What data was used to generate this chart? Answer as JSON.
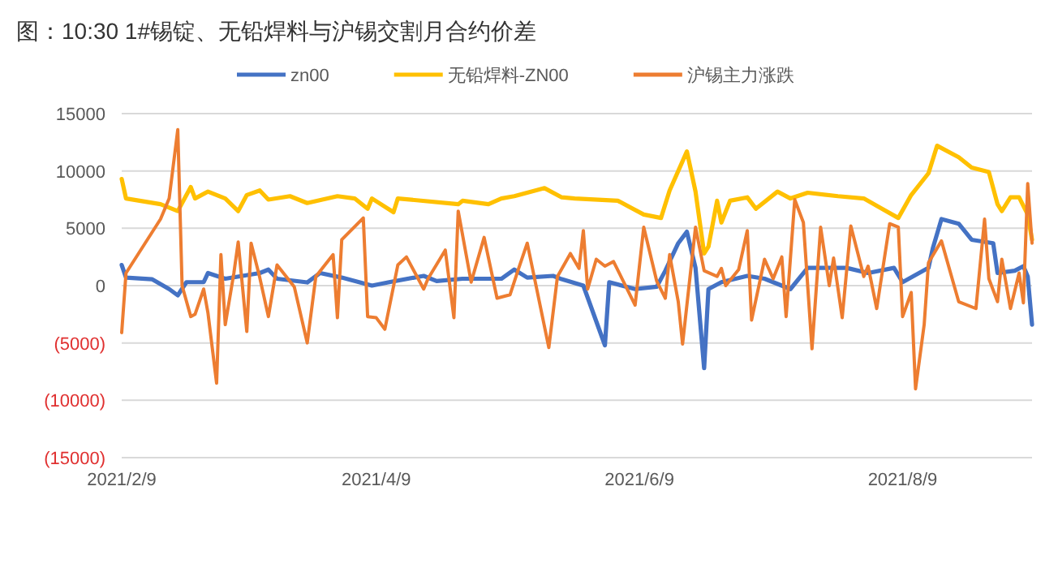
{
  "chart_data": {
    "type": "line",
    "title": "图：10:30 1#锡锭、无铅焊料与沪锡交割月合约价差",
    "legend": "top",
    "grid": "y",
    "marker": "none",
    "line_style": "solid",
    "xlim": [
      "2021-02-09",
      "2021-09-08"
    ],
    "xticks": [
      {
        "value": "2021-02-09",
        "label": "2021/2/9"
      },
      {
        "value": "2021-04-09",
        "label": "2021/4/9"
      },
      {
        "value": "2021-06-09",
        "label": "2021/6/9"
      },
      {
        "value": "2021-08-09",
        "label": "2021/8/9"
      }
    ],
    "ylim": [
      -15000,
      15000
    ],
    "yticks": [
      {
        "value": -15000,
        "label": "(15000)"
      },
      {
        "value": -10000,
        "label": "(10000)"
      },
      {
        "value": -5000,
        "label": "(5000)"
      },
      0,
      5000,
      10000,
      15000
    ],
    "series": [
      {
        "name": "zn00",
        "color": "#4472c4",
        "x": [
          "2021-02-09",
          "2021-02-10",
          "2021-02-16",
          "2021-02-20",
          "2021-02-22",
          "2021-02-24",
          "2021-02-28",
          "2021-03-01",
          "2021-03-05",
          "2021-03-09",
          "2021-03-13",
          "2021-03-15",
          "2021-03-17",
          "2021-03-24",
          "2021-03-27",
          "2021-04-01",
          "2021-04-08",
          "2021-04-12",
          "2021-04-20",
          "2021-04-23",
          "2021-04-29",
          "2021-05-08",
          "2021-05-11",
          "2021-05-14",
          "2021-05-20",
          "2021-05-22",
          "2021-05-27",
          "2021-06-01",
          "2021-06-02",
          "2021-06-08",
          "2021-06-13",
          "2021-06-15",
          "2021-06-18",
          "2021-06-20",
          "2021-06-22",
          "2021-06-24",
          "2021-06-25",
          "2021-06-28",
          "2021-07-04",
          "2021-07-08",
          "2021-07-14",
          "2021-07-18",
          "2021-07-21",
          "2021-07-27",
          "2021-08-01",
          "2021-08-07",
          "2021-08-09",
          "2021-08-15",
          "2021-08-16",
          "2021-08-18",
          "2021-08-22",
          "2021-08-25",
          "2021-08-30",
          "2021-08-31",
          "2021-09-04",
          "2021-09-06",
          "2021-09-07",
          "2021-09-08"
        ],
        "values": [
          1800,
          700,
          560,
          -300,
          -850,
          300,
          300,
          1100,
          600,
          850,
          1100,
          1400,
          600,
          280,
          1100,
          700,
          0,
          300,
          850,
          400,
          600,
          600,
          1400,
          700,
          850,
          560,
          0,
          -5200,
          300,
          -300,
          -100,
          1300,
          3700,
          4700,
          1550,
          -7200,
          -300,
          300,
          850,
          600,
          -300,
          1550,
          1550,
          1550,
          1100,
          1550,
          300,
          1550,
          3250,
          5800,
          5400,
          4000,
          3700,
          1100,
          1300,
          1700,
          800,
          -3400
        ]
      },
      {
        "name": "无铅焊料-ZN00",
        "color": "#ffc000",
        "x": [
          "2021-02-09",
          "2021-02-10",
          "2021-02-18",
          "2021-02-22",
          "2021-02-25",
          "2021-02-26",
          "2021-03-01",
          "2021-03-05",
          "2021-03-08",
          "2021-03-10",
          "2021-03-13",
          "2021-03-15",
          "2021-03-20",
          "2021-03-24",
          "2021-03-31",
          "2021-04-04",
          "2021-04-07",
          "2021-04-08",
          "2021-04-13",
          "2021-04-14",
          "2021-04-28",
          "2021-04-29",
          "2021-05-05",
          "2021-05-08",
          "2021-05-11",
          "2021-05-18",
          "2021-05-22",
          "2021-05-25",
          "2021-06-04",
          "2021-06-10",
          "2021-06-14",
          "2021-06-16",
          "2021-06-20",
          "2021-06-22",
          "2021-06-24",
          "2021-06-25",
          "2021-06-27",
          "2021-06-28",
          "2021-06-30",
          "2021-07-04",
          "2021-07-06",
          "2021-07-11",
          "2021-07-14",
          "2021-07-18",
          "2021-07-25",
          "2021-07-31",
          "2021-08-08",
          "2021-08-11",
          "2021-08-15",
          "2021-08-17",
          "2021-08-22",
          "2021-08-25",
          "2021-08-29",
          "2021-08-31",
          "2021-09-01",
          "2021-09-03",
          "2021-09-05",
          "2021-09-07",
          "2021-09-08"
        ],
        "values": [
          9300,
          7600,
          7100,
          6500,
          8600,
          7600,
          8200,
          7600,
          6500,
          7900,
          8300,
          7500,
          7800,
          7200,
          7800,
          7600,
          6700,
          7600,
          6400,
          7600,
          7100,
          7400,
          7100,
          7600,
          7800,
          8500,
          7700,
          7600,
          7400,
          6200,
          5900,
          8300,
          11700,
          8200,
          2800,
          3400,
          7400,
          5500,
          7400,
          7700,
          6700,
          8200,
          7600,
          8100,
          7800,
          7600,
          5900,
          7900,
          9800,
          12200,
          11200,
          10300,
          9900,
          7100,
          6500,
          7700,
          7700,
          6200,
          4000
        ]
      },
      {
        "name": "沪锡主力涨跌",
        "color": "#ed7d31",
        "x": [
          "2021-02-09",
          "2021-02-10",
          "2021-02-18",
          "2021-02-20",
          "2021-02-22",
          "2021-02-23",
          "2021-02-25",
          "2021-02-26",
          "2021-02-28",
          "2021-03-01",
          "2021-03-03",
          "2021-03-04",
          "2021-03-05",
          "2021-03-07",
          "2021-03-08",
          "2021-03-10",
          "2021-03-11",
          "2021-03-13",
          "2021-03-15",
          "2021-03-17",
          "2021-03-21",
          "2021-03-24",
          "2021-03-26",
          "2021-03-30",
          "2021-03-31",
          "2021-04-01",
          "2021-04-06",
          "2021-04-07",
          "2021-04-09",
          "2021-04-11",
          "2021-04-14",
          "2021-04-16",
          "2021-04-20",
          "2021-04-21",
          "2021-04-25",
          "2021-04-27",
          "2021-04-28",
          "2021-05-01",
          "2021-05-04",
          "2021-05-07",
          "2021-05-10",
          "2021-05-12",
          "2021-05-14",
          "2021-05-19",
          "2021-05-21",
          "2021-05-24",
          "2021-05-26",
          "2021-05-27",
          "2021-05-28",
          "2021-05-30",
          "2021-06-01",
          "2021-06-03",
          "2021-06-08",
          "2021-06-10",
          "2021-06-13",
          "2021-06-15",
          "2021-06-16",
          "2021-06-18",
          "2021-06-19",
          "2021-06-22",
          "2021-06-24",
          "2021-06-27",
          "2021-06-28",
          "2021-06-29",
          "2021-07-02",
          "2021-07-04",
          "2021-07-05",
          "2021-07-08",
          "2021-07-10",
          "2021-07-12",
          "2021-07-13",
          "2021-07-15",
          "2021-07-17",
          "2021-07-19",
          "2021-07-21",
          "2021-07-23",
          "2021-07-24",
          "2021-07-26",
          "2021-07-28",
          "2021-07-31",
          "2021-08-01",
          "2021-08-03",
          "2021-08-06",
          "2021-08-08",
          "2021-08-09",
          "2021-08-11",
          "2021-08-12",
          "2021-08-14",
          "2021-08-15",
          "2021-08-18",
          "2021-08-22",
          "2021-08-26",
          "2021-08-28",
          "2021-08-29",
          "2021-08-31",
          "2021-09-01",
          "2021-09-03",
          "2021-09-05",
          "2021-09-06",
          "2021-09-07",
          "2021-09-08"
        ],
        "values": [
          -4100,
          1100,
          5800,
          7600,
          13600,
          0,
          -2700,
          -2500,
          -300,
          -2400,
          -8500,
          2700,
          -3400,
          1100,
          3800,
          -4000,
          3700,
          700,
          -2700,
          1800,
          -100,
          -5000,
          800,
          2700,
          -2800,
          4000,
          5900,
          -2700,
          -2800,
          -3800,
          1800,
          2500,
          -300,
          600,
          3100,
          -2800,
          6500,
          300,
          4200,
          -1100,
          -800,
          1500,
          3700,
          -5400,
          800,
          2800,
          1500,
          4800,
          -300,
          2300,
          1700,
          2100,
          -1700,
          5100,
          400,
          -1100,
          2700,
          -1400,
          -5100,
          5100,
          1300,
          800,
          1500,
          0,
          1400,
          4800,
          -3000,
          2300,
          600,
          2500,
          -2700,
          7500,
          5500,
          -5500,
          5100,
          0,
          2400,
          -2800,
          5200,
          800,
          1700,
          -2000,
          5400,
          5100,
          -2700,
          -600,
          -9000,
          -3400,
          2000,
          3900,
          -1400,
          -2000,
          5800,
          600,
          -1400,
          2300,
          -2000,
          1100,
          -1500,
          8900,
          3700
        ]
      }
    ]
  }
}
